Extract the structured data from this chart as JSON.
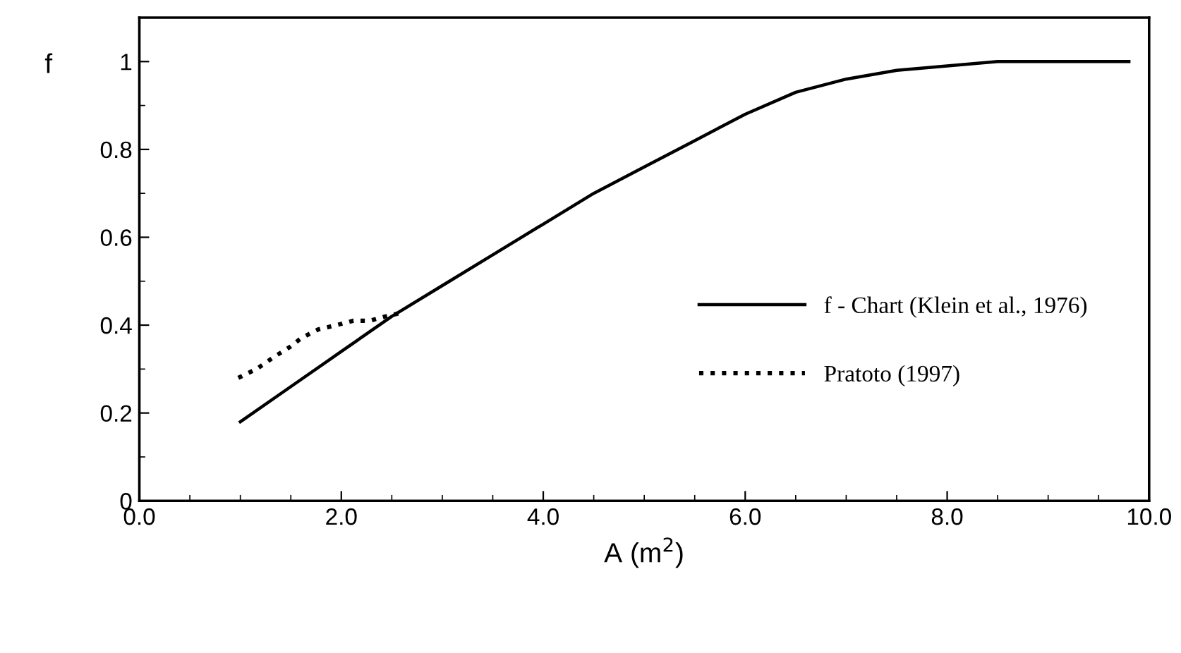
{
  "chart_data": {
    "type": "line",
    "xlabel": "A (m$^{2}$)",
    "ylabel": "f",
    "series": [
      {
        "name": "f - Chart (Klein et al., 1976)",
        "color": "#000000",
        "line_style": "solid",
        "x": [
          1.0,
          1.5,
          2.0,
          2.5,
          3.0,
          3.5,
          4.0,
          4.5,
          5.0,
          5.5,
          6.0,
          6.5,
          7.0,
          7.5,
          8.0,
          8.5,
          9.0,
          9.8
        ],
        "values": [
          0.18,
          0.26,
          0.34,
          0.42,
          0.49,
          0.56,
          0.63,
          0.7,
          0.76,
          0.82,
          0.88,
          0.93,
          0.96,
          0.98,
          0.99,
          1.0,
          1.0,
          1.0
        ]
      },
      {
        "name": "Pratoto (1997)",
        "color": "#000000",
        "line_style": "dotted",
        "x": [
          0.98,
          1.16,
          1.35,
          1.49,
          1.6,
          1.77,
          1.95,
          2.12,
          2.28,
          2.44,
          2.63
        ],
        "values": [
          0.28,
          0.3,
          0.33,
          0.35,
          0.37,
          0.39,
          0.4,
          0.41,
          0.41,
          0.42,
          0.43
        ]
      }
    ],
    "xlim": [
      0,
      10
    ],
    "ylim": [
      0,
      1.1
    ],
    "xticks": [
      {
        "value": 0,
        "label": "0.0"
      },
      {
        "value": 2,
        "label": "2.0"
      },
      {
        "value": 4,
        "label": "4.0"
      },
      {
        "value": 6,
        "label": "6.0"
      },
      {
        "value": 8,
        "label": "8.0"
      },
      {
        "value": 10,
        "label": "10.0"
      }
    ],
    "yticks": [
      0,
      0.2,
      0.4,
      0.6,
      0.8,
      1
    ],
    "legend": "center right",
    "grid": false,
    "marker": "none"
  }
}
